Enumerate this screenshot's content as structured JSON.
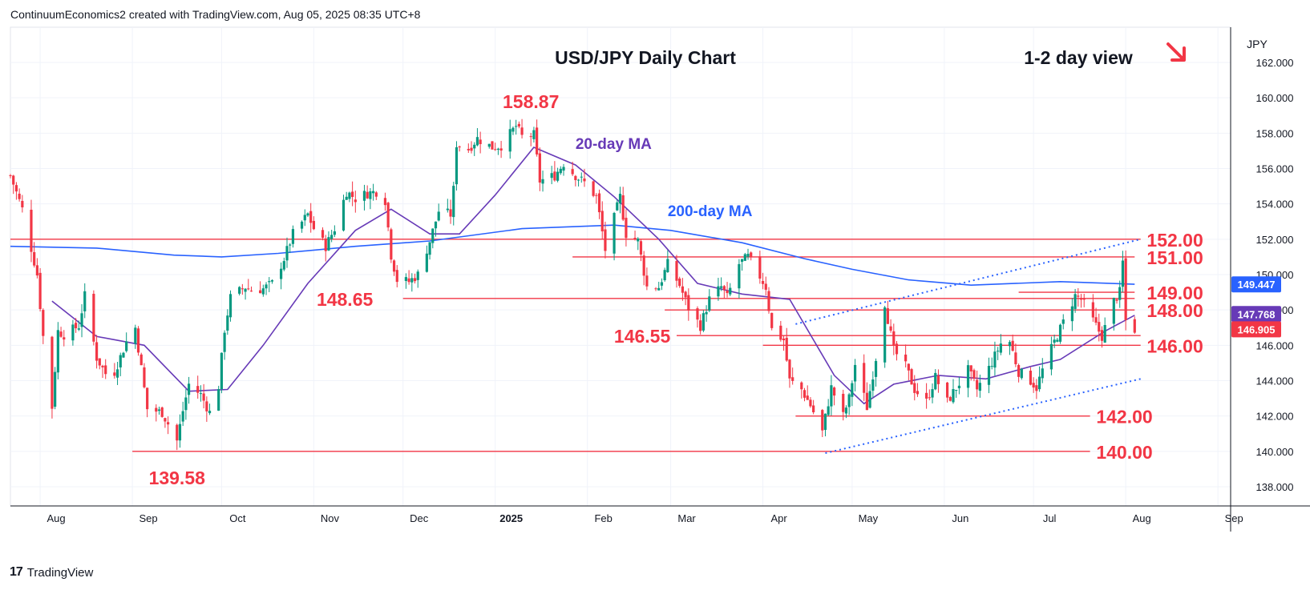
{
  "header": {
    "attribution": "ContinuumEconomics2 created with TradingView.com, Aug 05, 2025 08:35 UTC+8"
  },
  "footer": {
    "brand": "TradingView"
  },
  "colors": {
    "red": "#f23645",
    "blue": "#2962ff",
    "purple": "#673ab7",
    "up": "#089981",
    "down": "#f23645"
  },
  "chart_data": {
    "type": "candlestick",
    "title": "USD/JPY Daily Chart",
    "subtitle": "1-2 day view",
    "subtitle_icon": "arrow-down-right-icon",
    "currency_label": "JPY",
    "ylim": [
      137,
      163
    ],
    "y_ticks": [
      {
        "v": 138,
        "l": "138.000"
      },
      {
        "v": 140,
        "l": "140.000"
      },
      {
        "v": 142,
        "l": "142.000"
      },
      {
        "v": 144,
        "l": "144.000"
      },
      {
        "v": 146,
        "l": "146.000"
      },
      {
        "v": 148,
        "l": "148.000"
      },
      {
        "v": 150,
        "l": "150.000"
      },
      {
        "v": 152,
        "l": "152.000"
      },
      {
        "v": 154,
        "l": "154.000"
      },
      {
        "v": 156,
        "l": "156.000"
      },
      {
        "v": 158,
        "l": "158.000"
      },
      {
        "v": 160,
        "l": "160.000"
      },
      {
        "v": 162,
        "l": "162.000"
      }
    ],
    "x_ticks": [
      {
        "d": "2024-08-01",
        "l": "Aug",
        "bold": false
      },
      {
        "d": "2024-09-01",
        "l": "Sep",
        "bold": false
      },
      {
        "d": "2024-10-01",
        "l": "Oct",
        "bold": false
      },
      {
        "d": "2024-11-01",
        "l": "Nov",
        "bold": false
      },
      {
        "d": "2024-12-01",
        "l": "Dec",
        "bold": false
      },
      {
        "d": "2025-01-01",
        "l": "2025",
        "bold": true
      },
      {
        "d": "2025-02-01",
        "l": "Feb",
        "bold": false
      },
      {
        "d": "2025-03-01",
        "l": "Mar",
        "bold": false
      },
      {
        "d": "2025-04-01",
        "l": "Apr",
        "bold": false
      },
      {
        "d": "2025-05-01",
        "l": "May",
        "bold": false
      },
      {
        "d": "2025-06-01",
        "l": "Jun",
        "bold": false
      },
      {
        "d": "2025-07-01",
        "l": "Jul",
        "bold": false
      },
      {
        "d": "2025-08-01",
        "l": "Aug",
        "bold": false
      },
      {
        "d": "2025-09-01",
        "l": "Sep",
        "bold": false
      }
    ],
    "x_range": [
      "2024-07-22",
      "2025-09-05"
    ],
    "close_path": [
      [
        "2024-07-22",
        155.6
      ],
      [
        "2024-07-26",
        153.7
      ],
      [
        "2024-07-31",
        150.0
      ],
      [
        "2024-08-02",
        146.5
      ],
      [
        "2024-08-05",
        142.5
      ],
      [
        "2024-08-07",
        146.8
      ],
      [
        "2024-08-09",
        146.6
      ],
      [
        "2024-08-14",
        147.1
      ],
      [
        "2024-08-16",
        148.8
      ],
      [
        "2024-08-20",
        145.3
      ],
      [
        "2024-08-23",
        144.4
      ],
      [
        "2024-08-26",
        144.5
      ],
      [
        "2024-08-30",
        146.2
      ],
      [
        "2024-09-02",
        147.0
      ],
      [
        "2024-09-06",
        142.4
      ],
      [
        "2024-09-11",
        142.2
      ],
      [
        "2024-09-16",
        140.6
      ],
      [
        "2024-09-18",
        142.3
      ],
      [
        "2024-09-20",
        143.8
      ],
      [
        "2024-09-24",
        143.2
      ],
      [
        "2024-09-27",
        142.2
      ],
      [
        "2024-09-30",
        143.7
      ],
      [
        "2024-10-02",
        146.9
      ],
      [
        "2024-10-04",
        148.7
      ],
      [
        "2024-10-09",
        149.3
      ],
      [
        "2024-10-11",
        149.1
      ],
      [
        "2024-10-15",
        149.2
      ],
      [
        "2024-10-18",
        149.5
      ],
      [
        "2024-10-22",
        150.9
      ],
      [
        "2024-10-25",
        152.3
      ],
      [
        "2024-10-30",
        153.4
      ],
      [
        "2024-11-01",
        152.6
      ],
      [
        "2024-11-05",
        151.6
      ],
      [
        "2024-11-08",
        152.6
      ],
      [
        "2024-11-12",
        154.7
      ],
      [
        "2024-11-15",
        154.3
      ],
      [
        "2024-11-19",
        154.6
      ],
      [
        "2024-11-22",
        154.7
      ],
      [
        "2024-11-25",
        154.2
      ],
      [
        "2024-11-27",
        151.1
      ],
      [
        "2024-11-29",
        149.7
      ],
      [
        "2024-12-03",
        149.6
      ],
      [
        "2024-12-06",
        150.0
      ],
      [
        "2024-12-10",
        151.9
      ],
      [
        "2024-12-13",
        153.6
      ],
      [
        "2024-12-17",
        153.4
      ],
      [
        "2024-12-18",
        154.8
      ],
      [
        "2024-12-19",
        157.4
      ],
      [
        "2024-12-23",
        157.1
      ],
      [
        "2024-12-26",
        157.7
      ],
      [
        "2024-12-31",
        157.2
      ],
      [
        "2025-01-03",
        157.3
      ],
      [
        "2025-01-08",
        158.4
      ],
      [
        "2025-01-10",
        157.8
      ],
      [
        "2025-01-14",
        157.9
      ],
      [
        "2025-01-16",
        155.3
      ],
      [
        "2025-01-21",
        155.6
      ],
      [
        "2025-01-24",
        156.3
      ],
      [
        "2025-01-28",
        155.6
      ],
      [
        "2025-01-31",
        155.2
      ],
      [
        "2025-02-04",
        154.4
      ],
      [
        "2025-02-07",
        151.4
      ],
      [
        "2025-02-12",
        154.4
      ],
      [
        "2025-02-14",
        152.3
      ],
      [
        "2025-02-18",
        151.9
      ],
      [
        "2025-02-21",
        149.3
      ],
      [
        "2025-02-25",
        149.3
      ],
      [
        "2025-02-28",
        150.6
      ],
      [
        "2025-03-04",
        149.4
      ],
      [
        "2025-03-07",
        148.1
      ],
      [
        "2025-03-11",
        147.1
      ],
      [
        "2025-03-14",
        148.6
      ],
      [
        "2025-03-18",
        149.3
      ],
      [
        "2025-03-20",
        148.7
      ],
      [
        "2025-03-24",
        150.6
      ],
      [
        "2025-03-27",
        151.0
      ],
      [
        "2025-03-31",
        149.9
      ],
      [
        "2025-04-02",
        149.3
      ],
      [
        "2025-04-04",
        146.9
      ],
      [
        "2025-04-08",
        146.3
      ],
      [
        "2025-04-10",
        144.0
      ],
      [
        "2025-04-14",
        143.5
      ],
      [
        "2025-04-17",
        142.6
      ],
      [
        "2025-04-21",
        141.1
      ],
      [
        "2025-04-24",
        143.6
      ],
      [
        "2025-04-28",
        142.0
      ],
      [
        "2025-04-30",
        143.0
      ],
      [
        "2025-05-02",
        144.9
      ],
      [
        "2025-05-06",
        142.5
      ],
      [
        "2025-05-09",
        145.3
      ],
      [
        "2025-05-12",
        148.4
      ],
      [
        "2025-05-15",
        145.7
      ],
      [
        "2025-05-19",
        144.8
      ],
      [
        "2025-05-22",
        143.5
      ],
      [
        "2025-05-26",
        142.8
      ],
      [
        "2025-05-29",
        144.2
      ],
      [
        "2025-06-02",
        142.8
      ],
      [
        "2025-06-05",
        143.6
      ],
      [
        "2025-06-09",
        144.6
      ],
      [
        "2025-06-12",
        143.5
      ],
      [
        "2025-06-16",
        144.7
      ],
      [
        "2025-06-20",
        146.1
      ],
      [
        "2025-06-23",
        146.2
      ],
      [
        "2025-06-26",
        144.5
      ],
      [
        "2025-06-30",
        144.0
      ],
      [
        "2025-07-02",
        143.6
      ],
      [
        "2025-07-04",
        144.6
      ],
      [
        "2025-07-08",
        146.2
      ],
      [
        "2025-07-11",
        147.3
      ],
      [
        "2025-07-15",
        148.8
      ],
      [
        "2025-07-17",
        148.6
      ],
      [
        "2025-07-21",
        147.4
      ],
      [
        "2025-07-24",
        146.5
      ],
      [
        "2025-07-28",
        148.5
      ],
      [
        "2025-07-30",
        149.0
      ],
      [
        "2025-07-31",
        150.7
      ],
      [
        "2025-08-01",
        147.4
      ],
      [
        "2025-08-04",
        146.9
      ]
    ],
    "ma20": [
      [
        "2024-08-05",
        148.5
      ],
      [
        "2024-08-20",
        146.5
      ],
      [
        "2024-09-05",
        146.0
      ],
      [
        "2024-09-20",
        143.4
      ],
      [
        "2024-10-03",
        143.5
      ],
      [
        "2024-10-15",
        146.0
      ],
      [
        "2024-10-30",
        149.5
      ],
      [
        "2024-11-15",
        152.5
      ],
      [
        "2024-11-27",
        153.7
      ],
      [
        "2024-12-10",
        152.3
      ],
      [
        "2024-12-20",
        152.3
      ],
      [
        "2025-01-01",
        154.5
      ],
      [
        "2025-01-14",
        157.2
      ],
      [
        "2025-01-28",
        156.2
      ],
      [
        "2025-02-10",
        154.4
      ],
      [
        "2025-02-25",
        152.0
      ],
      [
        "2025-03-10",
        149.5
      ],
      [
        "2025-03-25",
        148.9
      ],
      [
        "2025-04-10",
        148.6
      ],
      [
        "2025-04-25",
        144.3
      ],
      [
        "2025-05-05",
        142.7
      ],
      [
        "2025-05-15",
        143.8
      ],
      [
        "2025-05-30",
        144.3
      ],
      [
        "2025-06-15",
        144.1
      ],
      [
        "2025-06-30",
        144.8
      ],
      [
        "2025-07-10",
        145.2
      ],
      [
        "2025-07-25",
        146.8
      ],
      [
        "2025-08-04",
        147.7
      ]
    ],
    "ma200": [
      [
        "2024-07-22",
        151.6
      ],
      [
        "2024-08-20",
        151.5
      ],
      [
        "2024-09-15",
        151.1
      ],
      [
        "2024-10-01",
        151.0
      ],
      [
        "2024-10-20",
        151.2
      ],
      [
        "2024-11-15",
        151.6
      ],
      [
        "2024-12-10",
        151.9
      ],
      [
        "2025-01-10",
        152.6
      ],
      [
        "2025-02-10",
        152.8
      ],
      [
        "2025-03-01",
        152.5
      ],
      [
        "2025-03-25",
        151.8
      ],
      [
        "2025-04-15",
        150.9
      ],
      [
        "2025-05-01",
        150.3
      ],
      [
        "2025-05-20",
        149.7
      ],
      [
        "2025-06-10",
        149.4
      ],
      [
        "2025-07-10",
        149.6
      ],
      [
        "2025-08-04",
        149.45
      ]
    ],
    "h_lines": [
      {
        "v": 152,
        "from": "2024-07-22",
        "to": "2025-08-06"
      },
      {
        "v": 151,
        "from": "2025-01-27",
        "to": "2025-08-04"
      },
      {
        "v": 149,
        "from": "2025-06-26",
        "to": "2025-08-04"
      },
      {
        "v": 148.65,
        "from": "2024-12-01",
        "to": "2025-08-04"
      },
      {
        "v": 148,
        "from": "2025-02-27",
        "to": "2025-08-04"
      },
      {
        "v": 146.55,
        "from": "2025-03-03",
        "to": "2025-08-06"
      },
      {
        "v": 146,
        "from": "2025-04-01",
        "to": "2025-08-06"
      },
      {
        "v": 142,
        "from": "2025-04-12",
        "to": "2025-07-20"
      },
      {
        "v": 140,
        "from": "2024-09-01",
        "to": "2025-07-20"
      }
    ],
    "trendlines": [
      {
        "from": [
          "2025-04-22",
          139.9
        ],
        "to": [
          "2025-08-06",
          144.1
        ]
      },
      {
        "from": [
          "2025-04-12",
          147.2
        ],
        "to": [
          "2025-08-06",
          152.0
        ]
      }
    ],
    "labels": [
      {
        "text": "158.87",
        "x": "2025-01-13",
        "y": 158.87,
        "pos": "above"
      },
      {
        "text": "148.65",
        "x": "2024-11-22",
        "y": 148.65,
        "pos": "left"
      },
      {
        "text": "146.55",
        "x": "2025-03-02",
        "y": 146.55,
        "pos": "left"
      },
      {
        "text": "139.58",
        "x": "2024-09-16",
        "y": 139.58,
        "pos": "below"
      },
      {
        "text": "152.00",
        "x": "2025-08-07",
        "y": 152,
        "pos": "right"
      },
      {
        "text": "151.00",
        "x": "2025-08-07",
        "y": 151,
        "pos": "right"
      },
      {
        "text": "149.00",
        "x": "2025-08-07",
        "y": 149,
        "pos": "right"
      },
      {
        "text": "148.00",
        "x": "2025-08-07",
        "y": 148,
        "pos": "right"
      },
      {
        "text": "146.00",
        "x": "2025-08-07",
        "y": 146,
        "pos": "right"
      },
      {
        "text": "142.00",
        "x": "2025-07-21",
        "y": 142,
        "pos": "right"
      },
      {
        "text": "140.00",
        "x": "2025-07-21",
        "y": 140,
        "pos": "right"
      }
    ],
    "ma_labels": [
      {
        "text": "20-day MA",
        "x": "2025-01-28",
        "y": 157.1,
        "color": "purple"
      },
      {
        "text": "200-day MA",
        "x": "2025-02-28",
        "y": 153.3,
        "color": "blue"
      }
    ],
    "price_tags": [
      {
        "text": "149.447",
        "v": 149.447,
        "color": "#2962ff"
      },
      {
        "text": "147.768",
        "v": 147.768,
        "color": "#673ab7"
      },
      {
        "text": "146.905",
        "v": 146.905,
        "color": "#f23645"
      }
    ]
  }
}
